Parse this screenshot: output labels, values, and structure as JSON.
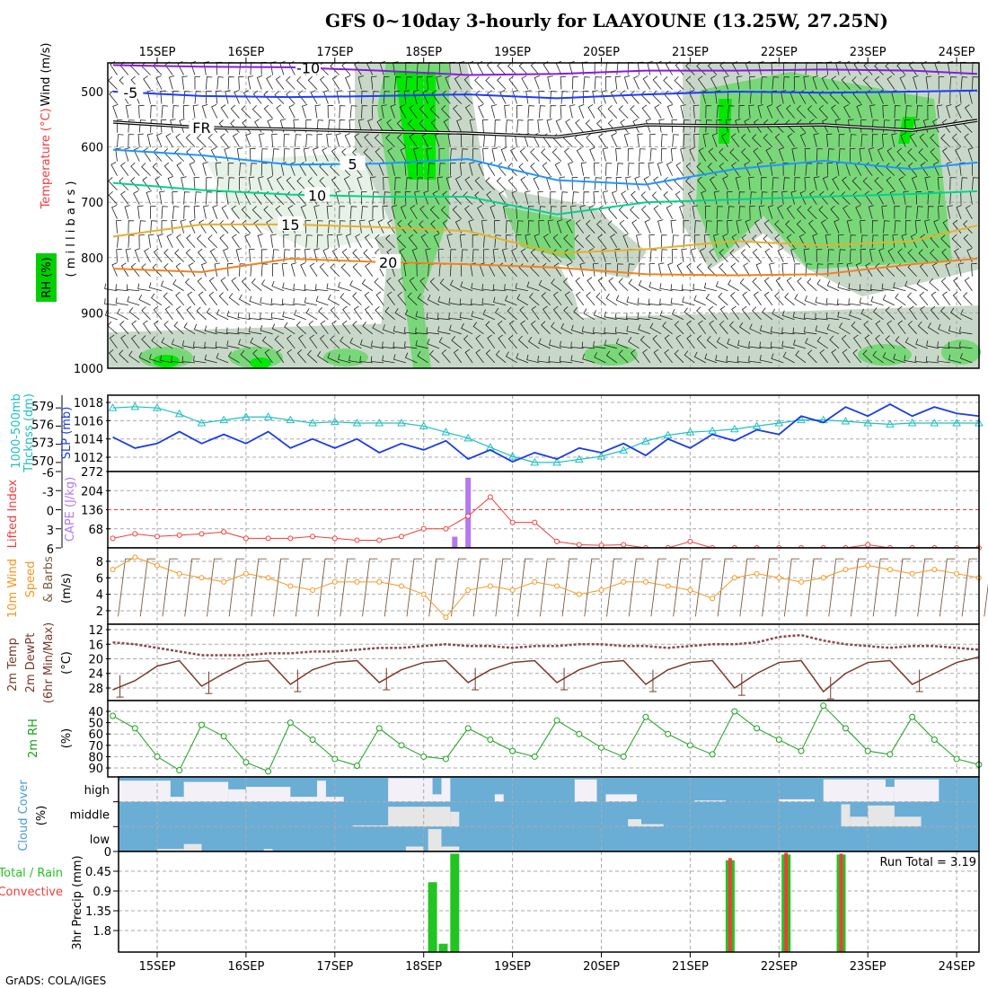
{
  "title": "GFS 0~10day 3-hourly for LAAYOUNE (13.25W, 27.25N)",
  "footer": "GrADS: COLA/IGES",
  "date_labels": [
    "15SEP",
    "16SEP",
    "17SEP",
    "18SEP",
    "19SEP",
    "20SEP",
    "21SEP",
    "22SEP",
    "23SEP",
    "24SEP"
  ],
  "axis_labels": {
    "upper_wind": "Wind (m/s)",
    "upper_temp_a": "Temperature",
    "upper_temp_b": "(°C)",
    "upper_rh": "RH (%)",
    "upper_p": "( m i l l i b a r s )",
    "thick": "1000-500mb",
    "thick2": "Thcknss (dm)",
    "slp": "SLP (mb)",
    "li": "Lifted Index",
    "cape": "CAPE (J/kg)",
    "wind_a": "10m Wind",
    "wind_b": "Speed",
    "wind_c": "& Barbs",
    "wind_u": "(m/s)",
    "temp_a": "2m Temp",
    "temp_b": "2m DewPt",
    "temp_c": "(6hr Min/Max)",
    "temp_u": "(°C)",
    "rh_a": "2m RH",
    "rh_u": "(%)",
    "cloud_a": "Cloud Cover",
    "cloud_u": "(%)",
    "precip_a": "Total / Rain",
    "precip_b": "Convective",
    "precip_u": "3hr Precip (mm)",
    "run_total": "Run Total = 3.19"
  },
  "colors": {
    "thickness": "#20c0c0",
    "slp": "#1c3ce6",
    "li": "#f03c3c",
    "cape": "#b478f0",
    "wind": "#f5961e",
    "barb": "#7a5a40",
    "temp": "#7a3a2a",
    "rh_line": "#1aa01a",
    "cloud": "#6aaed6",
    "precip_total": "#22c422",
    "precip_conv": "#f03c3c"
  },
  "chart_data": {
    "type": "line",
    "time_axis": {
      "unit": "days since 15SEP 00Z",
      "start": -0.5,
      "step": 0.25
    },
    "upper_air": {
      "pressure_ticks": [
        500,
        600,
        700,
        800,
        900,
        1000
      ],
      "ylim": [
        448,
        1000
      ],
      "isotherm_days": [
        -0.5,
        0.5,
        1.5,
        2.5,
        3.5,
        4.5,
        5.5,
        6.5,
        7.5,
        8.5,
        9.5
      ],
      "isotherms": [
        {
          "label": "-10",
          "color": "#8a1ae0",
          "p": [
            452,
            455,
            456,
            462,
            470,
            468,
            462,
            462,
            460,
            462,
            468
          ],
          "label_day": 1.7
        },
        {
          "label": "-5",
          "color": "#1e3cff",
          "p": [
            500,
            508,
            510,
            508,
            505,
            512,
            505,
            500,
            502,
            500,
            498
          ],
          "label_day": -0.3
        },
        {
          "label": "FR",
          "color": "#000000",
          "p": [
            555,
            565,
            568,
            572,
            575,
            582,
            560,
            562,
            560,
            570,
            552
          ],
          "label_day": 0.5
        },
        {
          "label": "5",
          "color": "#1e96ff",
          "p": [
            605,
            615,
            632,
            630,
            622,
            660,
            668,
            640,
            625,
            640,
            628
          ],
          "label_day": 2.2
        },
        {
          "label": "10",
          "color": "#00d28c",
          "p": [
            665,
            678,
            686,
            690,
            690,
            722,
            700,
            695,
            690,
            685,
            680
          ],
          "label_day": 1.8
        },
        {
          "label": "15",
          "color": "#e6af2d",
          "p": [
            762,
            740,
            740,
            745,
            752,
            792,
            785,
            770,
            778,
            770,
            742
          ],
          "label_day": 1.5
        },
        {
          "label": "20",
          "color": "#f0821e",
          "p": [
            820,
            826,
            802,
            808,
            812,
            818,
            830,
            832,
            830,
            812,
            802
          ],
          "label_day": 2.6
        }
      ]
    },
    "thickness": {
      "ticks": [
        570,
        573,
        576,
        579
      ],
      "values": [
        579,
        579.2,
        579,
        578,
        576.5,
        577,
        577.5,
        577.5,
        577,
        576.5,
        576.7,
        576.5,
        576.5,
        576.5,
        576,
        575,
        574,
        572.5,
        571,
        570,
        570,
        570.5,
        571,
        572,
        573.5,
        574.5,
        575,
        575.2,
        575.5,
        576,
        576.5,
        577,
        577,
        576.8,
        576.5,
        576.3,
        576.5,
        576.5,
        576.5,
        576.5
      ]
    },
    "slp": {
      "ticks": [
        1012,
        1014,
        1016,
        1018
      ],
      "values": [
        1014.2,
        1013,
        1013.5,
        1014.8,
        1013.5,
        1014.5,
        1013.5,
        1014.8,
        1013,
        1014,
        1013,
        1014,
        1012.5,
        1013.5,
        1012.8,
        1013.8,
        1011.8,
        1012.8,
        1011.5,
        1012.5,
        1011.8,
        1013,
        1012.5,
        1013.5,
        1012.2,
        1014,
        1013,
        1014.5,
        1013.8,
        1015,
        1014.5,
        1016.5,
        1015.8,
        1017.5,
        1016.5,
        1017.8,
        1016.5,
        1017.5,
        1016.8,
        1016.5
      ]
    },
    "lifted_index": {
      "ticks": [
        -6,
        -3,
        0,
        3,
        6
      ],
      "values": [
        4.5,
        3.8,
        4.2,
        4,
        3.8,
        3.5,
        4.5,
        4.5,
        4.5,
        4.2,
        4.5,
        4.8,
        4.8,
        4.2,
        3,
        3,
        1,
        -2,
        2,
        2,
        5,
        5.5,
        5.6,
        5.5,
        6,
        6,
        5,
        6,
        6,
        6,
        6,
        6,
        6,
        6,
        5.5,
        6,
        6,
        6,
        6,
        6
      ]
    },
    "cape": {
      "ticks": [
        68,
        136,
        204,
        272
      ],
      "bars": [
        {
          "day": 3.35,
          "value": 40
        },
        {
          "day": 3.5,
          "value": 250
        }
      ]
    },
    "wind_speed": {
      "ticks": [
        2,
        4,
        6,
        8
      ],
      "values": [
        7,
        8.5,
        7.5,
        6.5,
        6,
        5.5,
        6.5,
        6,
        5,
        4.5,
        5.5,
        5.5,
        5.5,
        5,
        4,
        1.2,
        4.5,
        5,
        4.5,
        5.5,
        5,
        4,
        4.5,
        5.5,
        5.5,
        5,
        4.5,
        3.5,
        6,
        6.5,
        6,
        5.5,
        6,
        7,
        7.5,
        7,
        6.5,
        7,
        6.5,
        6
      ]
    },
    "temp_2m": {
      "ticks": [
        12,
        16,
        20,
        24,
        28
      ],
      "values": [
        28.5,
        26,
        22,
        20.5,
        27.5,
        24,
        21,
        20.5,
        27,
        23,
        21,
        20.5,
        26.5,
        23,
        21,
        20.5,
        26.5,
        23,
        21,
        20.5,
        26.5,
        23,
        21,
        20.5,
        27,
        23,
        21,
        20.5,
        28,
        24,
        21,
        20.5,
        29,
        24,
        21,
        20.5,
        27,
        24,
        21,
        19.5
      ]
    },
    "dewpt_2m": {
      "values": [
        15.5,
        16,
        17,
        18,
        19,
        19,
        19,
        18.5,
        18.5,
        18,
        18,
        17.5,
        17,
        17,
        16.5,
        16,
        16.5,
        16.5,
        17,
        16.5,
        16.5,
        16,
        16,
        16.5,
        16.5,
        17,
        16.5,
        16,
        16,
        15.5,
        14,
        13.5,
        15,
        16,
        16.5,
        17,
        16.5,
        16.5,
        17,
        17.5
      ]
    },
    "rh_2m": {
      "ticks": [
        40,
        50,
        60,
        70,
        80,
        90
      ],
      "values": [
        44,
        55,
        80,
        92,
        52,
        62,
        85,
        93,
        50,
        65,
        82,
        88,
        55,
        70,
        80,
        82,
        55,
        65,
        75,
        80,
        48,
        60,
        72,
        80,
        45,
        60,
        70,
        78,
        40,
        55,
        65,
        75,
        35,
        55,
        75,
        78,
        45,
        65,
        82,
        87
      ]
    },
    "cloud_cover": {
      "levels": [
        "high",
        "middle",
        "low"
      ],
      "high": [
        [
          -0.45,
          0.15,
          0.85
        ],
        [
          0.15,
          0.3,
          0.2
        ],
        [
          0.3,
          0.8,
          0.8
        ],
        [
          0.8,
          1.0,
          0.5
        ],
        [
          1.0,
          1.5,
          0.6
        ],
        [
          1.5,
          1.8,
          0.2
        ],
        [
          1.8,
          1.9,
          0.85
        ],
        [
          1.9,
          2.1,
          0.2
        ],
        [
          2.6,
          3.1,
          0.95
        ],
        [
          3.1,
          3.2,
          0.3
        ],
        [
          3.2,
          3.3,
          0.95
        ],
        [
          3.8,
          3.9,
          0.3
        ],
        [
          4.7,
          4.95,
          0.9
        ],
        [
          5.05,
          5.4,
          0.3
        ],
        [
          6.05,
          6.4,
          0.05
        ],
        [
          7.0,
          7.4,
          0.1
        ],
        [
          7.5,
          8.2,
          0.9
        ],
        [
          8.2,
          8.3,
          0.6
        ],
        [
          8.3,
          8.8,
          0.9
        ]
      ],
      "middle": [
        [
          2.2,
          2.6,
          0.05
        ],
        [
          2.6,
          3.3,
          0.8
        ],
        [
          3.3,
          3.4,
          0.6
        ],
        [
          5.3,
          5.45,
          0.3
        ],
        [
          5.45,
          5.7,
          0.1
        ],
        [
          7.7,
          7.8,
          0.9
        ],
        [
          7.8,
          8.0,
          0.4
        ],
        [
          8.0,
          8.3,
          0.85
        ],
        [
          8.3,
          8.6,
          0.4
        ]
      ],
      "low": [
        [
          0.0,
          0.3,
          0.1
        ],
        [
          0.3,
          0.5,
          0.3
        ],
        [
          1.2,
          1.3,
          0.1
        ],
        [
          2.8,
          3.0,
          0.2
        ],
        [
          3.05,
          3.2,
          0.9
        ],
        [
          3.2,
          3.4,
          0.2
        ]
      ]
    },
    "precip_3hr": {
      "ticks": [
        "0",
        "0.45",
        "0.9",
        "1.35",
        "1.8"
      ],
      "ylim": [
        0,
        2.29
      ],
      "bars": [
        {
          "day": 3.1,
          "total": 0.7,
          "conv": 0
        },
        {
          "day": 3.22,
          "total": 2.1,
          "conv": 0
        },
        {
          "day": 3.35,
          "total": 0.05,
          "conv": 0
        },
        {
          "day": 6.45,
          "total": 0.2,
          "conv": 0.15
        },
        {
          "day": 7.08,
          "total": 0.07,
          "conv": 0.03
        },
        {
          "day": 7.7,
          "total": 0.07,
          "conv": 0.05
        }
      ]
    }
  }
}
